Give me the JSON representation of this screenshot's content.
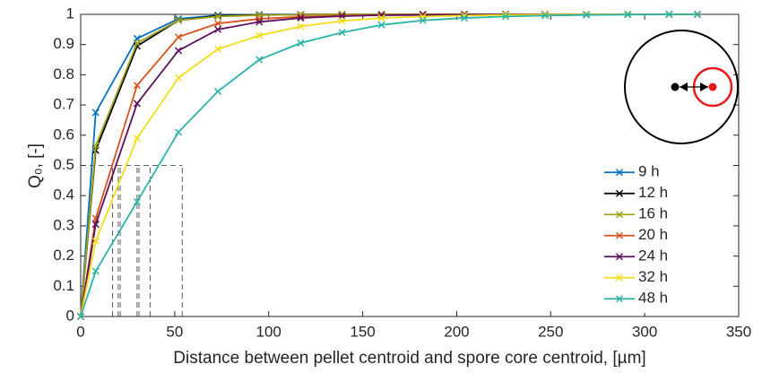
{
  "chart_data": {
    "type": "line",
    "xlabel": "Distance between pellet centroid and spore core centroid, [µm]",
    "ylabel": "Q₀, [-]",
    "x": [
      0,
      8,
      30,
      52,
      73,
      95,
      117,
      139,
      160,
      182,
      204,
      226,
      247,
      269,
      291,
      313,
      328
    ],
    "series": [
      {
        "name": "9 h",
        "color": "#0072bd",
        "values": [
          0,
          0.675,
          0.92,
          0.985,
          0.997,
          0.999,
          1,
          1,
          1,
          1,
          1,
          1,
          1,
          1,
          1,
          1,
          1
        ]
      },
      {
        "name": "12 h",
        "color": "#000000",
        "values": [
          0,
          0.55,
          0.895,
          0.98,
          0.995,
          0.998,
          0.999,
          1,
          1,
          1,
          1,
          1,
          1,
          1,
          1,
          1,
          1
        ]
      },
      {
        "name": "16 h",
        "color": "#a3a31a",
        "values": [
          0,
          0.565,
          0.905,
          0.98,
          0.993,
          0.997,
          0.999,
          1,
          1,
          1,
          1,
          1,
          1,
          1,
          1,
          1,
          1
        ]
      },
      {
        "name": "20 h",
        "color": "#d95319",
        "values": [
          0,
          0.325,
          0.765,
          0.925,
          0.97,
          0.985,
          0.992,
          0.996,
          0.998,
          0.999,
          1,
          1,
          1,
          1,
          1,
          1,
          1
        ]
      },
      {
        "name": "24 h",
        "color": "#5e0f5e",
        "values": [
          0,
          0.305,
          0.705,
          0.88,
          0.95,
          0.975,
          0.988,
          0.994,
          0.997,
          0.998,
          0.999,
          1,
          1,
          1,
          1,
          1,
          1
        ]
      },
      {
        "name": "32 h",
        "color": "#f2dc1a",
        "values": [
          0,
          0.25,
          0.59,
          0.79,
          0.885,
          0.93,
          0.96,
          0.978,
          0.988,
          0.993,
          0.996,
          0.998,
          0.999,
          1,
          1,
          1,
          1
        ]
      },
      {
        "name": "48 h",
        "color": "#2ab3a8",
        "values": [
          0,
          0.15,
          0.38,
          0.61,
          0.745,
          0.85,
          0.905,
          0.94,
          0.965,
          0.98,
          0.988,
          0.993,
          0.996,
          0.998,
          0.999,
          1,
          1
        ]
      }
    ],
    "reference_y": 0.5,
    "reference_x": [
      17,
      20,
      21,
      30,
      31,
      37,
      54
    ],
    "xlim": [
      0,
      350
    ],
    "xticks": [
      0,
      50,
      100,
      150,
      200,
      250,
      300,
      350
    ],
    "ylim": [
      0,
      1
    ],
    "yticks": [
      0,
      0.1,
      0.2,
      0.3,
      0.4,
      0.5,
      0.6,
      0.7,
      0.8,
      0.9,
      1
    ],
    "grid": false,
    "legend": "lower right"
  }
}
